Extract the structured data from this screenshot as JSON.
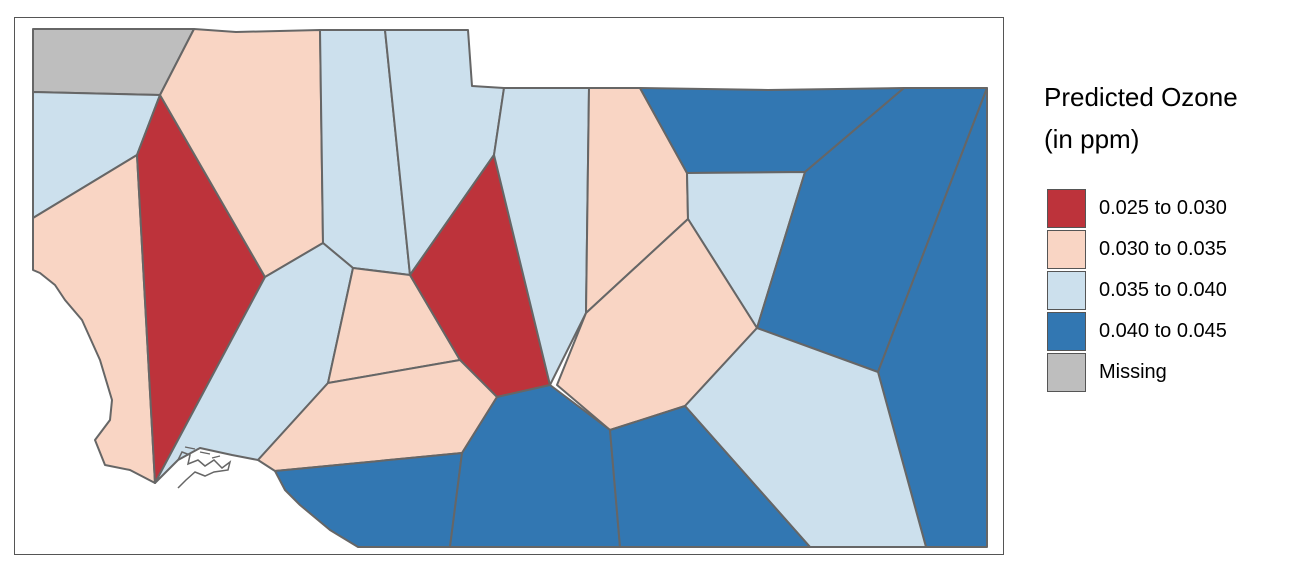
{
  "legend": {
    "title_line1": "Predicted Ozone",
    "title_line2": "(in ppm)",
    "items": [
      {
        "label": "0.025 to 0.030",
        "color": "#bd333b"
      },
      {
        "label": "0.030 to 0.035",
        "color": "#f9d5c4"
      },
      {
        "label": "0.035 to 0.040",
        "color": "#cce0ed"
      },
      {
        "label": "0.040 to 0.045",
        "color": "#3277b2"
      },
      {
        "label": "Missing",
        "color": "#bebebe"
      }
    ]
  },
  "map": {
    "boundary_color": "#666666",
    "regions": [
      {
        "id": "r-nw-corner",
        "class": "Missing"
      },
      {
        "id": "r-w1",
        "class": "0.035 to 0.040"
      },
      {
        "id": "r-w2",
        "class": "0.030 to 0.035"
      },
      {
        "id": "r-w3",
        "class": "0.025 to 0.030"
      },
      {
        "id": "r-n1",
        "class": "0.030 to 0.035"
      },
      {
        "id": "r-n2",
        "class": "0.035 to 0.040"
      },
      {
        "id": "r-n3",
        "class": "0.035 to 0.040"
      },
      {
        "id": "r-c1",
        "class": "0.035 to 0.040"
      },
      {
        "id": "r-c2",
        "class": "0.030 to 0.035"
      },
      {
        "id": "r-c3",
        "class": "0.025 to 0.030"
      },
      {
        "id": "r-c4",
        "class": "0.030 to 0.035"
      },
      {
        "id": "r-n4",
        "class": "0.035 to 0.040"
      },
      {
        "id": "r-n5",
        "class": "0.030 to 0.035"
      },
      {
        "id": "r-ne1",
        "class": "0.040 to 0.045"
      },
      {
        "id": "r-e1",
        "class": "0.035 to 0.040"
      },
      {
        "id": "r-e2",
        "class": "0.030 to 0.035"
      },
      {
        "id": "r-e3",
        "class": "0.040 to 0.045"
      },
      {
        "id": "r-e4",
        "class": "0.040 to 0.045"
      },
      {
        "id": "r-se1",
        "class": "0.035 to 0.040"
      },
      {
        "id": "r-s1",
        "class": "0.040 to 0.045"
      },
      {
        "id": "r-s2",
        "class": "0.040 to 0.045"
      },
      {
        "id": "r-s3",
        "class": "0.040 to 0.045"
      }
    ]
  }
}
